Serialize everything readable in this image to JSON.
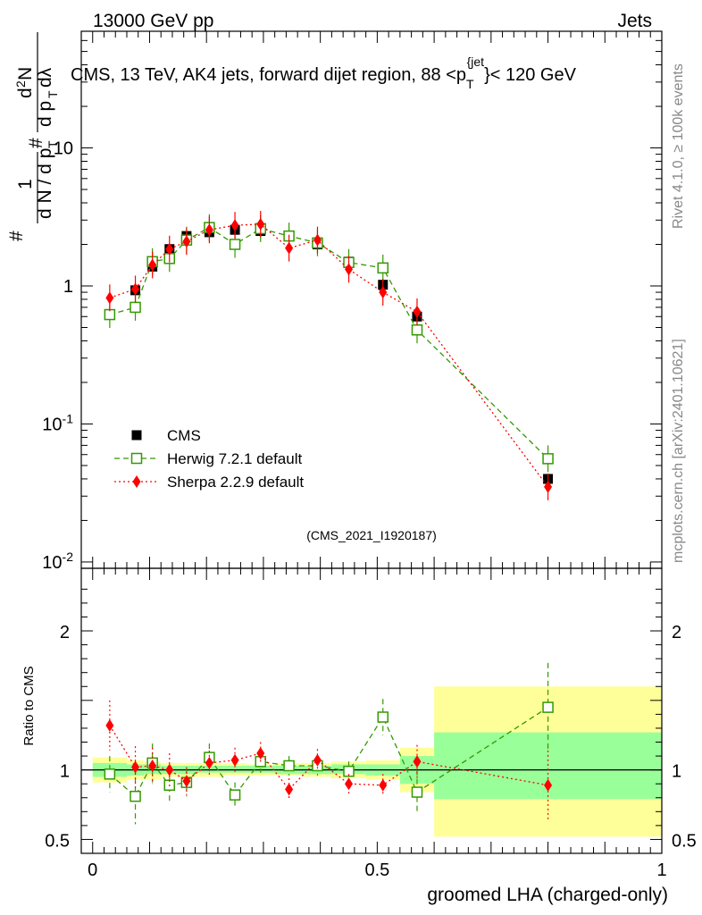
{
  "header": {
    "energy_label": "13000 GeV pp",
    "category_label": "Jets"
  },
  "side_labels": {
    "rivet": "Rivet 4.1.0, ≥ 100k events",
    "source": "mcplots.cern.ch [arXiv:2401.10621]"
  },
  "chart_data": [
    {
      "type": "scatter",
      "title": "CMS, 13 TeV, AK4 jets, forward dijet region, 88 <p_T^{jet}< 120 GeV",
      "analysis_tag": "(CMS_2021_I1920187)",
      "ylabel": "1/(dN/dpT) d²N/dpT dλ",
      "yscale": "log",
      "ylim": [
        0.009,
        70
      ],
      "xlim": [
        -0.02,
        1.0
      ],
      "y_tick_labels": [
        "10^{-2}",
        "10^{-1}",
        "1",
        "10"
      ],
      "legend": [
        "CMS",
        "Herwig 7.2.1 default",
        "Sherpa 2.2.9 default"
      ],
      "series": [
        {
          "name": "CMS",
          "color": "#000000",
          "marker": "filled-square",
          "x": [
            0.03,
            0.075,
            0.105,
            0.135,
            0.165,
            0.205,
            0.25,
            0.295,
            0.345,
            0.395,
            0.45,
            0.51,
            0.57,
            0.8
          ],
          "y": [
            0.62,
            0.93,
            1.38,
            1.85,
            2.3,
            2.45,
            2.55,
            2.5,
            2.3,
            2.0,
            1.5,
            1.02,
            0.6,
            0.04
          ]
        },
        {
          "name": "Herwig 7.2.1 default",
          "color": "#339900",
          "marker": "open-square",
          "x": [
            0.03,
            0.075,
            0.105,
            0.135,
            0.165,
            0.205,
            0.25,
            0.295,
            0.345,
            0.395,
            0.45,
            0.51,
            0.57,
            0.8
          ],
          "y": [
            0.62,
            0.7,
            1.5,
            1.58,
            2.15,
            2.65,
            2.0,
            2.6,
            2.3,
            2.05,
            1.48,
            1.35,
            0.48,
            0.056
          ]
        },
        {
          "name": "Sherpa 2.2.9 default",
          "color": "#ff0000",
          "marker": "filled-diamond",
          "x": [
            0.03,
            0.075,
            0.105,
            0.135,
            0.165,
            0.205,
            0.25,
            0.295,
            0.345,
            0.395,
            0.45,
            0.51,
            0.57,
            0.8
          ],
          "y": [
            0.82,
            0.95,
            1.42,
            1.85,
            2.1,
            2.55,
            2.75,
            2.8,
            1.88,
            2.15,
            1.32,
            0.9,
            0.65,
            0.035
          ]
        }
      ]
    },
    {
      "type": "scatter",
      "ylabel": "Ratio to CMS",
      "xlabel": "groomed LHA (charged-only)",
      "ylim": [
        0.4,
        2.45
      ],
      "xlim": [
        -0.02,
        1.0
      ],
      "x_ticks": [
        "0",
        "0.5",
        "1"
      ],
      "y_ticks": [
        "0.5",
        "1",
        "2"
      ],
      "reference_line": 1,
      "uncertainty_bands": [
        {
          "x_from": 0.0,
          "x_to": 0.06,
          "stat": [
            0.95,
            1.05
          ],
          "syst": [
            0.91,
            1.09
          ]
        },
        {
          "x_from": 0.06,
          "x_to": 0.09,
          "stat": [
            0.96,
            1.04
          ],
          "syst": [
            0.93,
            1.07
          ]
        },
        {
          "x_from": 0.09,
          "x_to": 0.12,
          "stat": [
            0.97,
            1.04
          ],
          "syst": [
            0.93,
            1.06
          ]
        },
        {
          "x_from": 0.12,
          "x_to": 0.15,
          "stat": [
            0.97,
            1.03
          ],
          "syst": [
            0.95,
            1.05
          ]
        },
        {
          "x_from": 0.15,
          "x_to": 0.18,
          "stat": [
            0.97,
            1.03
          ],
          "syst": [
            0.95,
            1.05
          ]
        },
        {
          "x_from": 0.18,
          "x_to": 0.23,
          "stat": [
            0.98,
            1.03
          ],
          "syst": [
            0.95,
            1.05
          ]
        },
        {
          "x_from": 0.23,
          "x_to": 0.27,
          "stat": [
            0.98,
            1.03
          ],
          "syst": [
            0.96,
            1.05
          ]
        },
        {
          "x_from": 0.27,
          "x_to": 0.32,
          "stat": [
            0.98,
            1.03
          ],
          "syst": [
            0.96,
            1.04
          ]
        },
        {
          "x_from": 0.32,
          "x_to": 0.37,
          "stat": [
            0.97,
            1.03
          ],
          "syst": [
            0.96,
            1.05
          ]
        },
        {
          "x_from": 0.37,
          "x_to": 0.42,
          "stat": [
            0.97,
            1.03
          ],
          "syst": [
            0.95,
            1.05
          ]
        },
        {
          "x_from": 0.42,
          "x_to": 0.48,
          "stat": [
            0.97,
            1.04
          ],
          "syst": [
            0.94,
            1.06
          ]
        },
        {
          "x_from": 0.48,
          "x_to": 0.54,
          "stat": [
            0.96,
            1.04
          ],
          "syst": [
            0.93,
            1.07
          ]
        },
        {
          "x_from": 0.54,
          "x_to": 0.6,
          "stat": [
            0.9,
            1.1
          ],
          "syst": [
            0.84,
            1.16
          ]
        },
        {
          "x_from": 0.6,
          "x_to": 1.0,
          "stat": [
            0.79,
            1.27
          ],
          "syst": [
            0.52,
            1.6
          ]
        }
      ],
      "series": [
        {
          "name": "Herwig 7.2.1 default",
          "color": "#339900",
          "marker": "open-square",
          "x": [
            0.03,
            0.075,
            0.105,
            0.135,
            0.165,
            0.205,
            0.25,
            0.295,
            0.345,
            0.395,
            0.45,
            0.51,
            0.57,
            0.8
          ],
          "y": [
            0.97,
            0.81,
            1.05,
            0.89,
            0.91,
            1.09,
            0.82,
            1.06,
            1.03,
            1.03,
            0.99,
            1.38,
            0.84,
            1.45
          ],
          "err": [
            0.13,
            0.2,
            0.14,
            0.12,
            0.1,
            0.1,
            0.09,
            0.08,
            0.07,
            0.07,
            0.07,
            0.13,
            0.16,
            0.32
          ]
        },
        {
          "name": "Sherpa 2.2.9 default",
          "color": "#ff0000",
          "marker": "filled-diamond",
          "x": [
            0.03,
            0.075,
            0.105,
            0.135,
            0.165,
            0.205,
            0.25,
            0.295,
            0.345,
            0.395,
            0.45,
            0.51,
            0.57,
            0.8
          ],
          "y": [
            1.32,
            1.02,
            1.03,
            1.0,
            0.92,
            1.05,
            1.07,
            1.12,
            0.86,
            1.07,
            0.9,
            0.89,
            1.06,
            0.89
          ],
          "err": [
            0.18,
            0.15,
            0.13,
            0.12,
            0.1,
            0.09,
            0.09,
            0.08,
            0.08,
            0.08,
            0.07,
            0.08,
            0.12,
            0.25
          ]
        }
      ]
    }
  ]
}
